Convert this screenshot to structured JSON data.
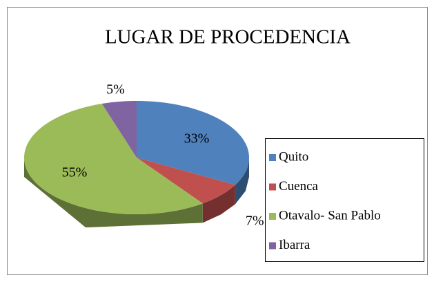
{
  "chart_data": {
    "type": "pie",
    "title": "LUGAR DE PROCEDENCIA",
    "categories": [
      "Quito",
      "Cuenca",
      "Otavalo- San Pablo",
      "Ibarra"
    ],
    "values": [
      33,
      7,
      55,
      5
    ],
    "value_labels": [
      "33%",
      "7%",
      "55%",
      "5%"
    ],
    "colors": [
      "#4f81bd",
      "#c0504d",
      "#9bbb59",
      "#8064a2"
    ],
    "legend": "right"
  }
}
